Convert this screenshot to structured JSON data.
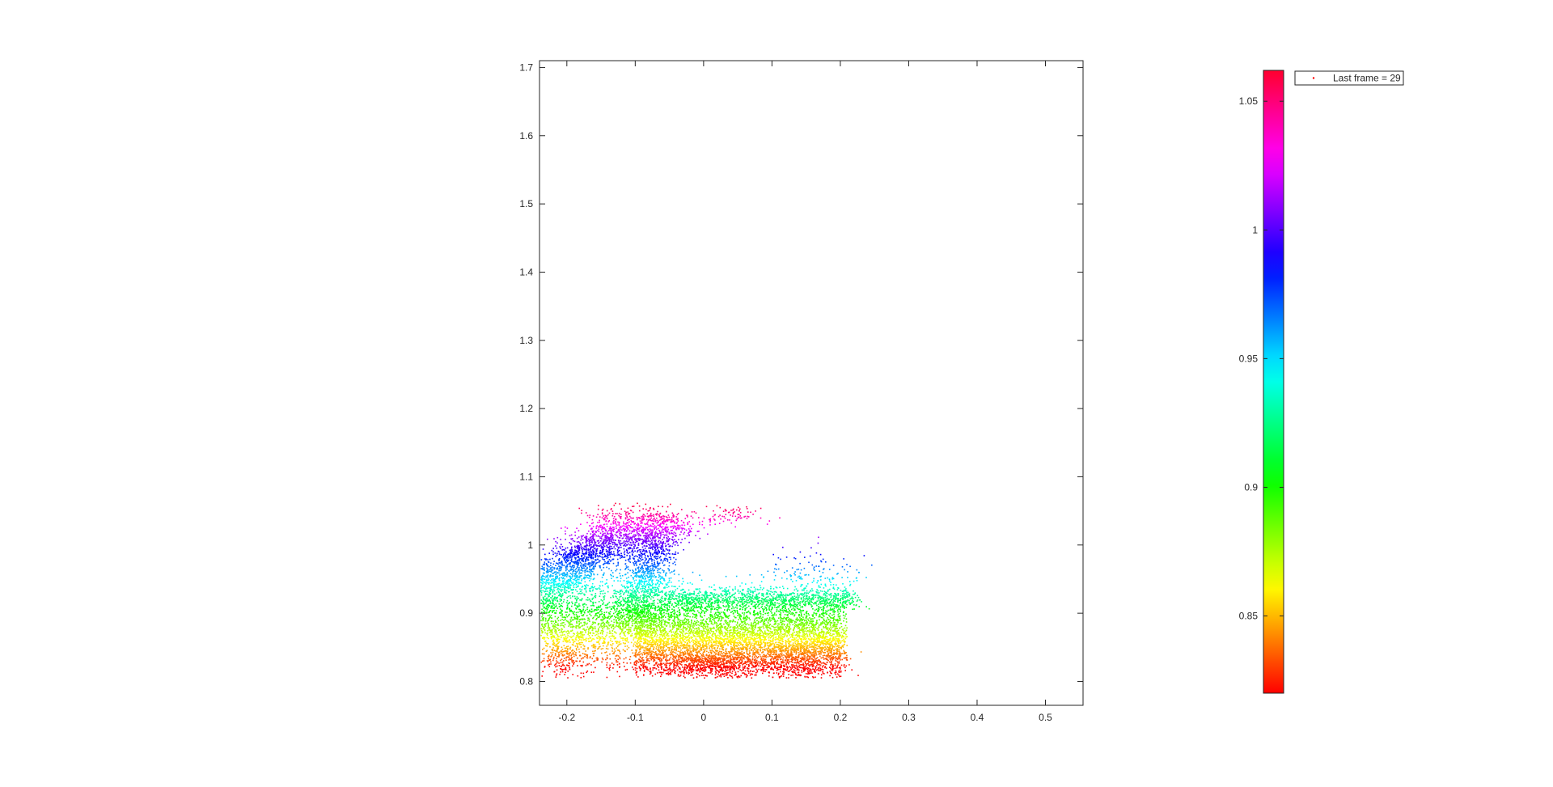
{
  "chart_data": {
    "type": "scatter",
    "title": "",
    "xlabel": "",
    "ylabel": "",
    "xlim": [
      -0.24,
      0.555
    ],
    "ylim": [
      0.765,
      1.71
    ],
    "x_ticks": [
      -0.2,
      -0.1,
      0,
      0.1,
      0.2,
      0.3,
      0.4,
      0.5
    ],
    "x_tick_labels": [
      "-0.2",
      "-0.1",
      "0",
      "0.1",
      "0.2",
      "0.3",
      "0.4",
      "0.5"
    ],
    "y_ticks": [
      0.8,
      0.9,
      1.0,
      1.1,
      1.2,
      1.3,
      1.4,
      1.5,
      1.6,
      1.7
    ],
    "y_tick_labels": [
      "0.8",
      "0.9",
      "1",
      "1.1",
      "1.2",
      "1.3",
      "1.4",
      "1.5",
      "1.6",
      "1.7"
    ],
    "grid": false,
    "legend": {
      "entries": [
        "Last frame = 29"
      ],
      "placement": "outside-top-right",
      "marker_color": "#ff0000"
    },
    "colorbar": {
      "colormap": "hsv",
      "range": [
        0.82,
        1.062
      ],
      "ticks": [
        0.85,
        0.9,
        0.95,
        1.0,
        1.05
      ],
      "tick_labels": [
        "0.85",
        "0.9",
        "0.95",
        "1",
        "1.05"
      ],
      "placement": "right"
    },
    "color_by": "y",
    "series": [
      {
        "marker": "dot",
        "point_count_estimate": 12000,
        "clusters": [
          {
            "shape": "band",
            "x_range": [
              -0.24,
              0.21
            ],
            "y_center": 0.875,
            "y_spread": 0.03,
            "tilt": -0.05,
            "n": 4200
          },
          {
            "shape": "band",
            "x_range": [
              -0.1,
              0.2
            ],
            "y_center": 0.855,
            "y_spread": 0.025,
            "tilt": 0.0,
            "n": 2600
          },
          {
            "shape": "arm",
            "x_from": -0.24,
            "y_from": 0.93,
            "x_to": -0.105,
            "y_to": 1.035,
            "width": 0.045,
            "n": 1900
          },
          {
            "shape": "arm",
            "x_from": -0.1,
            "y_from": 0.89,
            "x_to": -0.06,
            "y_to": 1.04,
            "width": 0.035,
            "n": 1300
          },
          {
            "shape": "arm",
            "x_from": -0.06,
            "y_from": 0.92,
            "x_to": 0.22,
            "y_to": 0.92,
            "width": 0.02,
            "n": 1100
          },
          {
            "shape": "blob",
            "x_center": 0.02,
            "y_center": 0.825,
            "x_spread": 0.05,
            "y_spread": 0.008,
            "n": 600
          },
          {
            "shape": "blob",
            "x_center": 0.15,
            "y_center": 0.83,
            "x_spread": 0.03,
            "y_spread": 0.015,
            "n": 250
          },
          {
            "shape": "blob",
            "x_center": -0.2,
            "y_center": 0.84,
            "x_spread": 0.02,
            "y_spread": 0.02,
            "n": 250
          },
          {
            "shape": "blob",
            "x_center": 0.16,
            "y_center": 0.95,
            "x_spread": 0.04,
            "y_spread": 0.02,
            "n": 180
          },
          {
            "shape": "blob",
            "x_center": 0.04,
            "y_center": 1.045,
            "x_spread": 0.025,
            "y_spread": 0.008,
            "n": 70
          },
          {
            "shape": "blob",
            "x_center": -0.04,
            "y_center": 1.03,
            "x_spread": 0.03,
            "y_spread": 0.01,
            "n": 120
          }
        ]
      }
    ]
  }
}
